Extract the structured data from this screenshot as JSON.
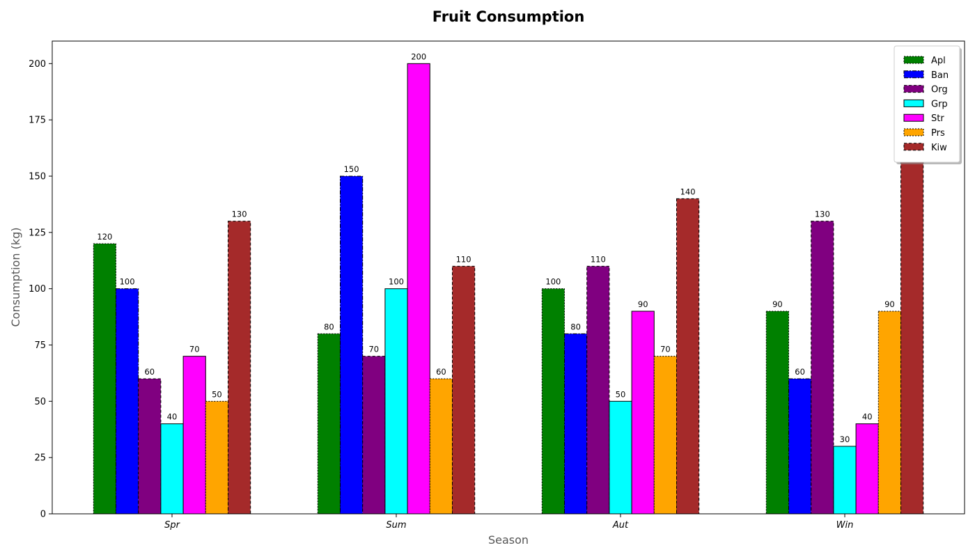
{
  "chart_data": {
    "type": "bar",
    "title": "Fruit Consumption",
    "xlabel": "Season",
    "ylabel": "Consumption (kg)",
    "categories": [
      "Spr",
      "Sum",
      "Aut",
      "Win"
    ],
    "ylim": [
      0,
      210
    ],
    "yticks": [
      0,
      25,
      50,
      75,
      100,
      125,
      150,
      175,
      200
    ],
    "grid": false,
    "legend_position": "top-right",
    "series": [
      {
        "name": "Apl",
        "values": [
          120,
          80,
          100,
          90
        ],
        "color": "#008000",
        "dash": "dotted"
      },
      {
        "name": "Ban",
        "values": [
          100,
          150,
          80,
          60
        ],
        "color": "#0000ff",
        "dash": "dashdot"
      },
      {
        "name": "Org",
        "values": [
          60,
          70,
          110,
          130
        ],
        "color": "#800080",
        "dash": "dashed"
      },
      {
        "name": "Grp",
        "values": [
          40,
          100,
          50,
          30
        ],
        "color": "#00ffff",
        "dash": "solid"
      },
      {
        "name": "Str",
        "values": [
          70,
          200,
          90,
          40
        ],
        "color": "#ff00ff",
        "dash": "solid"
      },
      {
        "name": "Prs",
        "values": [
          50,
          60,
          70,
          90
        ],
        "color": "#ffa500",
        "dash": "dotted"
      },
      {
        "name": "Kiw",
        "values": [
          130,
          110,
          140,
          160
        ],
        "color": "#a52a2a",
        "dash": "dashed"
      }
    ]
  }
}
